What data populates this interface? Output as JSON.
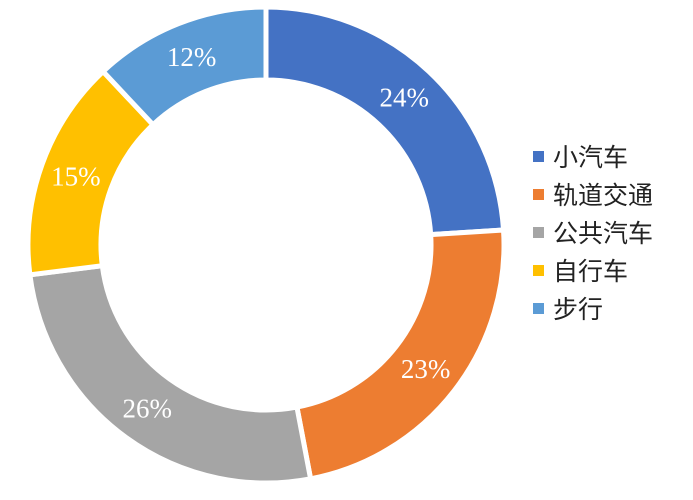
{
  "chart_data": {
    "type": "pie",
    "donut": true,
    "categories": [
      "小汽车",
      "轨道交通",
      "公共汽车",
      "自行车",
      "步行"
    ],
    "values": [
      24,
      23,
      26,
      15,
      12
    ],
    "value_labels": [
      "24%",
      "23%",
      "26%",
      "15%",
      "12%"
    ],
    "colors": [
      "#4472C4",
      "#ED7D31",
      "#A5A5A5",
      "#FFC000",
      "#5B9BD5"
    ],
    "legend_position": "right"
  }
}
